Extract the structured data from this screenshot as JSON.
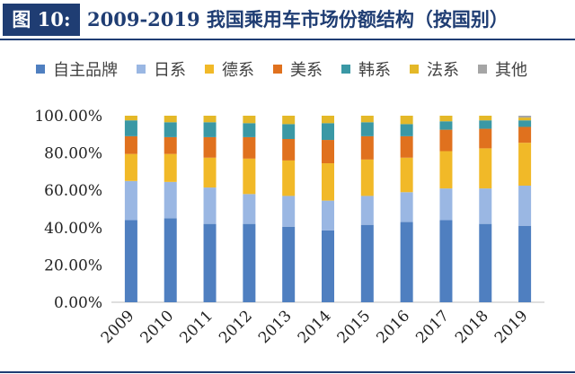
{
  "figure": {
    "label": "图 10:",
    "title": "2009-2019 我国乘用车市场份额结构（按国别）"
  },
  "chart_data": {
    "type": "bar",
    "stacked": true,
    "categories": [
      "2009",
      "2010",
      "2011",
      "2012",
      "2013",
      "2014",
      "2015",
      "2016",
      "2017",
      "2018",
      "2019"
    ],
    "series": [
      {
        "name": "自主品牌",
        "color": "#4f7fc0",
        "values": [
          44.0,
          45.0,
          42.0,
          42.0,
          40.5,
          38.5,
          41.5,
          43.0,
          44.0,
          42.0,
          41.0
        ]
      },
      {
        "name": "日系",
        "color": "#9ab7e3",
        "values": [
          21.0,
          19.5,
          19.5,
          16.0,
          16.5,
          16.0,
          15.5,
          16.0,
          17.0,
          19.0,
          21.5
        ]
      },
      {
        "name": "德系",
        "color": "#f1b928",
        "values": [
          14.5,
          15.0,
          16.0,
          19.0,
          19.0,
          20.0,
          19.5,
          18.5,
          20.0,
          21.5,
          23.0
        ]
      },
      {
        "name": "美系",
        "color": "#e0711e",
        "values": [
          9.5,
          9.0,
          11.0,
          11.5,
          11.5,
          12.5,
          12.5,
          11.5,
          11.5,
          10.5,
          8.5
        ]
      },
      {
        "name": "韩系",
        "color": "#3a98a5",
        "values": [
          8.5,
          8.0,
          8.0,
          7.5,
          8.0,
          9.0,
          7.5,
          6.5,
          4.5,
          4.5,
          3.5
        ]
      },
      {
        "name": "法系",
        "color": "#e4b828",
        "values": [
          2.5,
          3.5,
          3.5,
          4.0,
          4.5,
          4.0,
          3.5,
          4.5,
          3.0,
          2.5,
          1.5
        ]
      },
      {
        "name": "其他",
        "color": "#a5a5a5",
        "values": [
          0.0,
          0.0,
          0.0,
          0.0,
          0.0,
          0.0,
          0.0,
          0.0,
          0.0,
          0.0,
          1.0
        ]
      }
    ],
    "yticks": [
      "0.00%",
      "20.00%",
      "40.00%",
      "60.00%",
      "80.00%",
      "100.00%"
    ],
    "ylim": [
      0,
      100
    ],
    "xlabel": "",
    "ylabel": "",
    "legend_position": "top"
  }
}
